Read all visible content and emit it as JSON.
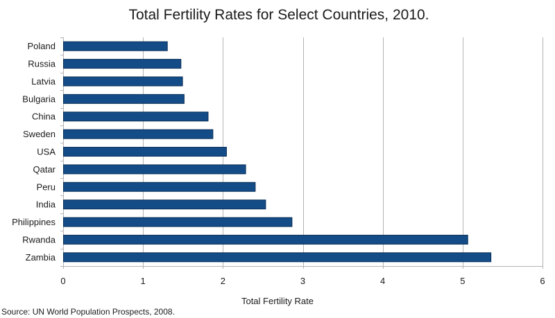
{
  "chart_data": {
    "type": "bar",
    "orientation": "horizontal",
    "title": "Total Fertility Rates for Select Countries, 2010.",
    "xlabel": "Total Fertility Rate",
    "ylabel": "",
    "xlim": [
      0,
      6
    ],
    "xticks": [
      0,
      1,
      2,
      3,
      4,
      5,
      6
    ],
    "grid": "vertical",
    "legend": "none",
    "bar_color": "#134C87",
    "categories": [
      "Poland",
      "Russia",
      "Latvia",
      "Bulgaria",
      "China",
      "Sweden",
      "USA",
      "Qatar",
      "Peru",
      "India",
      "Philippines",
      "Rwanda",
      "Zambia"
    ],
    "values": [
      1.3,
      1.47,
      1.49,
      1.51,
      1.81,
      1.87,
      2.04,
      2.28,
      2.4,
      2.53,
      2.86,
      5.06,
      5.35
    ]
  },
  "source": "Source: UN World Population Prospects, 2008."
}
